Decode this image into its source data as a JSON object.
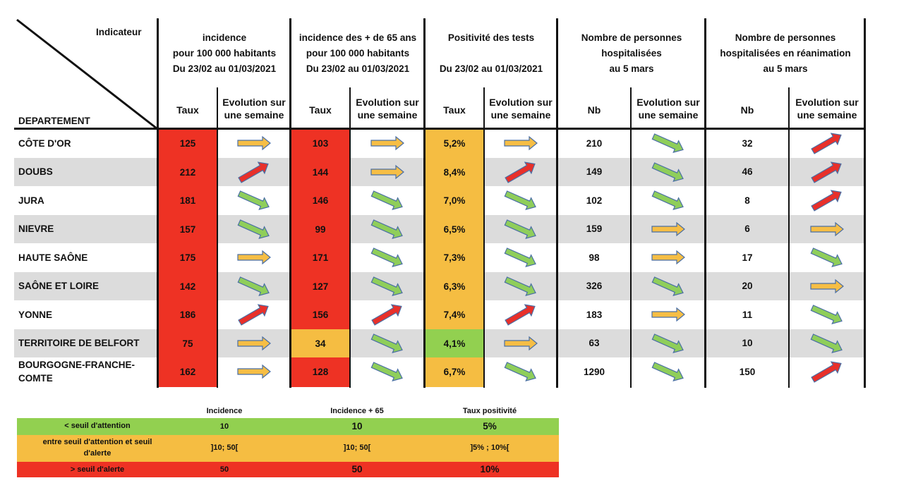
{
  "header": {
    "corner_indicator": "Indicateur",
    "corner_department": "DEPARTEMENT",
    "groups": [
      {
        "lines": [
          "incidence",
          "pour 100 000 habitants",
          "Du 23/02 au 01/03/2021"
        ]
      },
      {
        "lines": [
          "incidence des + de 65 ans",
          "pour 100 000 habitants",
          "Du 23/02 au 01/03/2021"
        ]
      },
      {
        "lines": [
          "Positivité des tests",
          "",
          "Du 23/02 au 01/03/2021"
        ]
      },
      {
        "lines": [
          "Nombre de personnes",
          "hospitalisées",
          "au 5 mars"
        ]
      },
      {
        "lines": [
          "Nombre de personnes",
          "hospitalisées en réanimation",
          "au 5 mars"
        ]
      }
    ],
    "sub": {
      "taux": "Taux",
      "nb": "Nb",
      "evolution": [
        "Evolution sur",
        "une semaine"
      ]
    }
  },
  "colors": {
    "red": "#ee3224",
    "orange": "#f5bd42",
    "green": "#92d050",
    "band": "#dcdcdc",
    "arrow_orange": "#f6be45",
    "arrow_green": "#8fce5a",
    "arrow_red": "#e8302a",
    "arrow_stroke": "#4a6fa5"
  },
  "rows": [
    {
      "dept": [
        "CÔTE D'OR"
      ],
      "inc": "125",
      "inc_bg": "red",
      "inc_ev": "flat",
      "inc65": "103",
      "inc65_bg": "red",
      "inc65_ev": "flat",
      "pos": "5,2%",
      "pos_bg": "orange",
      "pos_ev": "flat",
      "hosp": "210",
      "hosp_ev": "down",
      "rea": "32",
      "rea_ev": "up"
    },
    {
      "dept": [
        "DOUBS"
      ],
      "inc": "212",
      "inc_bg": "red",
      "inc_ev": "up",
      "inc65": "144",
      "inc65_bg": "red",
      "inc65_ev": "flat",
      "pos": "8,4%",
      "pos_bg": "orange",
      "pos_ev": "up",
      "hosp": "149",
      "hosp_ev": "down",
      "rea": "46",
      "rea_ev": "up"
    },
    {
      "dept": [
        "JURA"
      ],
      "inc": "181",
      "inc_bg": "red",
      "inc_ev": "down",
      "inc65": "146",
      "inc65_bg": "red",
      "inc65_ev": "down",
      "pos": "7,0%",
      "pos_bg": "orange",
      "pos_ev": "down",
      "hosp": "102",
      "hosp_ev": "down",
      "rea": "8",
      "rea_ev": "up"
    },
    {
      "dept": [
        "NIEVRE"
      ],
      "inc": "157",
      "inc_bg": "red",
      "inc_ev": "down",
      "inc65": "99",
      "inc65_bg": "red",
      "inc65_ev": "down",
      "pos": "6,5%",
      "pos_bg": "orange",
      "pos_ev": "down",
      "hosp": "159",
      "hosp_ev": "flat",
      "rea": "6",
      "rea_ev": "flat"
    },
    {
      "dept": [
        "HAUTE SAÔNE"
      ],
      "inc": "175",
      "inc_bg": "red",
      "inc_ev": "flat",
      "inc65": "171",
      "inc65_bg": "red",
      "inc65_ev": "down",
      "pos": "7,3%",
      "pos_bg": "orange",
      "pos_ev": "down",
      "hosp": "98",
      "hosp_ev": "flat",
      "rea": "17",
      "rea_ev": "down"
    },
    {
      "dept": [
        "SAÔNE ET LOIRE"
      ],
      "inc": "142",
      "inc_bg": "red",
      "inc_ev": "down",
      "inc65": "127",
      "inc65_bg": "red",
      "inc65_ev": "down",
      "pos": "6,3%",
      "pos_bg": "orange",
      "pos_ev": "down",
      "hosp": "326",
      "hosp_ev": "down",
      "rea": "20",
      "rea_ev": "flat"
    },
    {
      "dept": [
        "YONNE"
      ],
      "inc": "186",
      "inc_bg": "red",
      "inc_ev": "up",
      "inc65": "156",
      "inc65_bg": "red",
      "inc65_ev": "up",
      "pos": "7,4%",
      "pos_bg": "orange",
      "pos_ev": "up",
      "hosp": "183",
      "hosp_ev": "flat",
      "rea": "11",
      "rea_ev": "down"
    },
    {
      "dept": [
        "TERRITOIRE DE BELFORT"
      ],
      "inc": "75",
      "inc_bg": "red",
      "inc_ev": "flat",
      "inc65": "34",
      "inc65_bg": "orange",
      "inc65_ev": "down",
      "pos": "4,1%",
      "pos_bg": "green",
      "pos_ev": "flat",
      "hosp": "63",
      "hosp_ev": "down",
      "rea": "10",
      "rea_ev": "down"
    },
    {
      "dept": [
        "BOURGOGNE-FRANCHE-",
        "COMTE"
      ],
      "inc": "162",
      "inc_bg": "red",
      "inc_ev": "flat",
      "inc65": "128",
      "inc65_bg": "red",
      "inc65_ev": "down",
      "pos": "6,7%",
      "pos_bg": "orange",
      "pos_ev": "down",
      "hosp": "1290",
      "hosp_ev": "down",
      "rea": "150",
      "rea_ev": "up"
    }
  ],
  "legend": {
    "headers": [
      "Incidence",
      "Incidence + 65",
      "Taux positivité"
    ],
    "rows": [
      {
        "label": [
          "< seuil d'attention"
        ],
        "color": "green",
        "values": [
          "10",
          "10",
          "5%"
        ]
      },
      {
        "label": [
          "entre seuil d'attention et seuil",
          "d'alerte"
        ],
        "color": "orange",
        "values": [
          "]10; 50[",
          "]10; 50[",
          "]5% ; 10%["
        ]
      },
      {
        "label": [
          "> seuil d'alerte"
        ],
        "color": "red",
        "values": [
          "50",
          "50",
          "10%"
        ]
      }
    ]
  }
}
